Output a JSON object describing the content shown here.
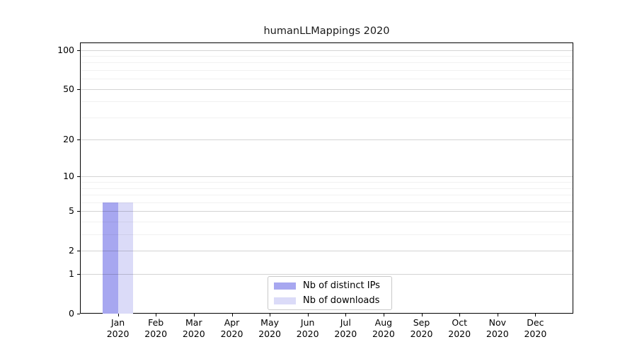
{
  "chart_data": {
    "type": "bar",
    "title": "humanLLMappings 2020",
    "xlabel": "",
    "ylabel": "",
    "yscale": "log1p",
    "ylim": [
      0,
      114
    ],
    "yticks": [
      0,
      1,
      2,
      5,
      10,
      20,
      50,
      100
    ],
    "yticks_minor": [
      3,
      4,
      6,
      7,
      8,
      9,
      30,
      40,
      60,
      70,
      80,
      90
    ],
    "grid": true,
    "categories": [
      {
        "month": "Jan",
        "year": "2020"
      },
      {
        "month": "Feb",
        "year": "2020"
      },
      {
        "month": "Mar",
        "year": "2020"
      },
      {
        "month": "Apr",
        "year": "2020"
      },
      {
        "month": "May",
        "year": "2020"
      },
      {
        "month": "Jun",
        "year": "2020"
      },
      {
        "month": "Jul",
        "year": "2020"
      },
      {
        "month": "Aug",
        "year": "2020"
      },
      {
        "month": "Sep",
        "year": "2020"
      },
      {
        "month": "Oct",
        "year": "2020"
      },
      {
        "month": "Nov",
        "year": "2020"
      },
      {
        "month": "Dec",
        "year": "2020"
      }
    ],
    "series": [
      {
        "name": "Nb of distinct IPs",
        "color": "#a7a7f0",
        "values": [
          6,
          0,
          0,
          0,
          0,
          0,
          0,
          0,
          0,
          0,
          0,
          0
        ]
      },
      {
        "name": "Nb of downloads",
        "color": "#dbdbf8",
        "values": [
          6,
          0,
          0,
          0,
          0,
          0,
          0,
          0,
          0,
          0,
          0,
          0
        ]
      }
    ],
    "legend_position": "inside-bottom-center"
  },
  "colors": {
    "background": "#ffffff",
    "spine": "#000000",
    "grid_major": "#d4d4d4",
    "grid_minor": "#efefef",
    "legend_border": "#c9c9c9"
  }
}
